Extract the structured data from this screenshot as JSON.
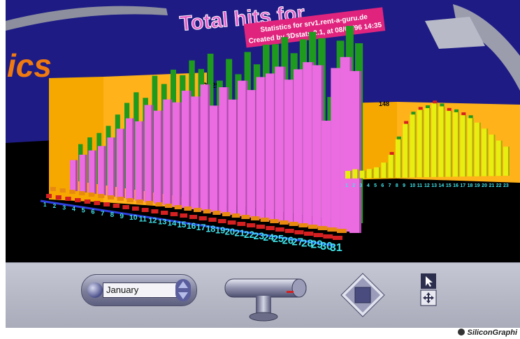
{
  "scene": {
    "title": "Total hits for",
    "banner_line1": "Statistics for srv1.rent-a-guru.de",
    "banner_line2": "Created by 3Dstats 2.1, at 08/03/96 14:35",
    "side_text": "ics",
    "peak_label": "42729",
    "right_peak_label": "148",
    "colors": {
      "sky": "#1e1c84",
      "floor": "#000000",
      "back_wall": "#f6a800",
      "title_text": "#e45ec8",
      "banner": "#e0247e",
      "side_text": "#f07a10",
      "bar_pink": "#ea6ce0",
      "bar_green": "#1e9a1e",
      "bar_orange": "#e88a10",
      "bar_red": "#d42020",
      "bar_yellow": "#e8ee10",
      "axis_label": "#40e4ea"
    }
  },
  "day_axis": {
    "labels": [
      "1",
      "2",
      "3",
      "4",
      "5",
      "6",
      "7",
      "8",
      "9",
      "10",
      "11",
      "12",
      "13",
      "14",
      "15",
      "16",
      "17",
      "18",
      "19",
      "20",
      "21",
      "22",
      "23",
      "24",
      "25",
      "26",
      "27",
      "28",
      "29",
      "30",
      "31"
    ]
  },
  "hour_axis": {
    "labels": [
      "1",
      "2",
      "3",
      "4",
      "5",
      "6",
      "7",
      "8",
      "9",
      "10",
      "11",
      "12",
      "13",
      "14",
      "15",
      "16",
      "17",
      "18",
      "19",
      "20",
      "21",
      "22",
      "23"
    ]
  },
  "controls": {
    "month_value": "January"
  },
  "footer": {
    "vendor": "SiliconGraphi"
  }
}
